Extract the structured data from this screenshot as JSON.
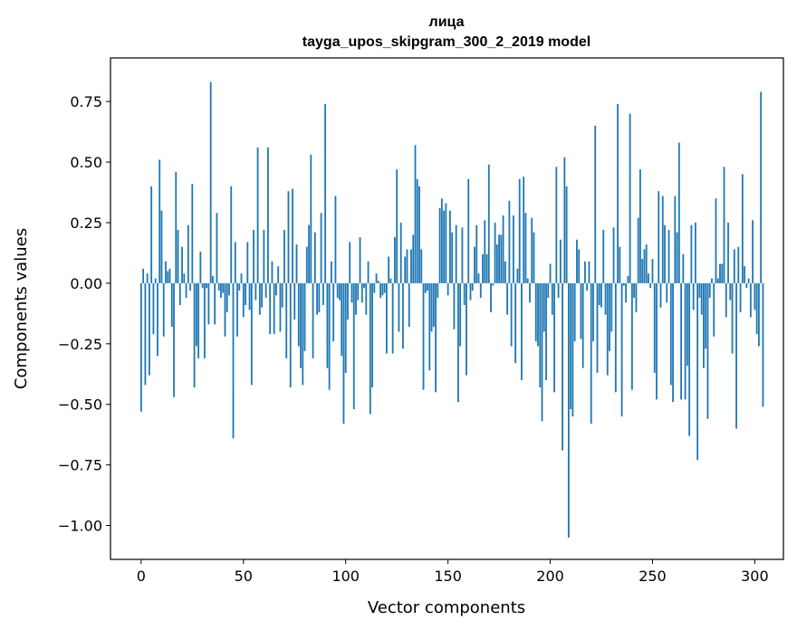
{
  "chart_data": {
    "type": "bar",
    "title": "лица",
    "subtitle": "tayga_upos_skipgram_300_2_2019 model",
    "xlabel": "Vector components",
    "ylabel": "Components values",
    "xlim": [
      -15,
      314
    ],
    "ylim": [
      -1.14,
      0.93
    ],
    "xticks": [
      0,
      50,
      100,
      150,
      200,
      250,
      300
    ],
    "xtick_labels": [
      "0",
      "50",
      "100",
      "150",
      "200",
      "250",
      "300"
    ],
    "yticks": [
      0.75,
      0.5,
      0.25,
      0.0,
      -0.25,
      -0.5,
      -0.75,
      -1.0
    ],
    "ytick_labels": [
      "0.75",
      "0.50",
      "0.25",
      "0.00",
      "−0.25",
      "−0.50",
      "−0.75",
      "−1.00"
    ],
    "bar_color": "#1f77b4",
    "grid": false,
    "values": [
      -0.53,
      0.06,
      -0.42,
      0.04,
      -0.38,
      0.4,
      -0.21,
      0.02,
      -0.3,
      0.51,
      0.3,
      -0.22,
      0.09,
      0.05,
      0.06,
      -0.18,
      -0.47,
      0.46,
      0.22,
      -0.09,
      0.15,
      0.04,
      -0.06,
      0.24,
      -0.03,
      0.41,
      -0.43,
      -0.26,
      -0.31,
      0.13,
      -0.02,
      -0.31,
      -0.02,
      -0.17,
      0.83,
      0.03,
      -0.17,
      0.29,
      -0.03,
      -0.06,
      -0.04,
      -0.22,
      -0.12,
      -0.05,
      0.4,
      -0.64,
      0.17,
      -0.22,
      -0.03,
      0.04,
      -0.14,
      -0.09,
      0.17,
      -0.11,
      -0.42,
      0.22,
      -0.07,
      0.56,
      -0.13,
      -0.1,
      0.22,
      -0.06,
      0.56,
      -0.21,
      0.09,
      -0.21,
      -0.05,
      0.07,
      -0.2,
      -0.1,
      0.22,
      -0.31,
      0.38,
      -0.43,
      0.39,
      -0.15,
      0.16,
      -0.26,
      -0.35,
      -0.42,
      -0.28,
      0.15,
      0.24,
      0.53,
      -0.31,
      0.21,
      -0.13,
      -0.12,
      0.29,
      -0.09,
      0.74,
      -0.35,
      -0.44,
      0.09,
      -0.24,
      0.36,
      -0.06,
      -0.07,
      -0.3,
      -0.58,
      -0.37,
      -0.15,
      0.17,
      -0.08,
      -0.52,
      -0.13,
      -0.07,
      0.19,
      -0.08,
      -0.02,
      -0.13,
      0.09,
      -0.54,
      -0.43,
      -0.04,
      0.04,
      0.01,
      -0.06,
      -0.05,
      -0.04,
      -0.29,
      0.11,
      0.02,
      -0.29,
      0.19,
      0.47,
      -0.2,
      0.25,
      -0.27,
      0.11,
      0.14,
      -0.18,
      0.14,
      0.2,
      0.57,
      0.43,
      0.4,
      0.14,
      -0.44,
      -0.04,
      -0.03,
      -0.36,
      -0.2,
      -0.18,
      -0.45,
      -0.06,
      0.31,
      0.35,
      0.3,
      0.33,
      -0.05,
      0.3,
      0.21,
      -0.19,
      0.24,
      -0.49,
      -0.26,
      0.23,
      -0.09,
      -0.38,
      0.43,
      -0.07,
      -0.03,
      0.15,
      0.24,
      0.04,
      -0.06,
      0.12,
      0.26,
      0.12,
      0.49,
      -0.12,
      -0.01,
      0.25,
      0.16,
      0.2,
      0.2,
      0.28,
      0.09,
      -0.13,
      0.34,
      -0.26,
      0.28,
      -0.33,
      0.06,
      0.43,
      -0.4,
      0.44,
      0.29,
      0.02,
      -0.08,
      0.27,
      0.21,
      -0.24,
      -0.26,
      -0.43,
      -0.57,
      -0.2,
      -0.4,
      -0.06,
      0.08,
      -0.13,
      -0.45,
      0.48,
      -0.06,
      0.18,
      -0.69,
      0.52,
      0.4,
      -1.05,
      -0.52,
      -0.55,
      -0.24,
      0.18,
      0.14,
      -0.23,
      -0.35,
      0.09,
      -0.03,
      0.09,
      -0.58,
      -0.24,
      0.65,
      -0.37,
      -0.09,
      -0.1,
      0.22,
      -0.13,
      -0.38,
      -0.28,
      -0.2,
      0.23,
      -0.45,
      0.74,
      0.15,
      -0.55,
      -0.01,
      -0.08,
      0.03,
      0.7,
      -0.44,
      -0.06,
      -0.12,
      0.27,
      0.47,
      0.1,
      0.14,
      0.16,
      0.04,
      -0.02,
      0.1,
      -0.37,
      -0.48,
      0.38,
      -0.1,
      0.36,
      0.24,
      -0.08,
      0.22,
      -0.42,
      -0.49,
      0.36,
      0.21,
      0.58,
      -0.48,
      0.12,
      -0.48,
      -0.34,
      -0.63,
      0.24,
      -0.11,
      0.25,
      -0.73,
      -0.06,
      -0.13,
      -0.35,
      -0.27,
      -0.56,
      -0.06,
      0.02,
      -0.22,
      0.35,
      0.02,
      0.08,
      0.08,
      0.48,
      -0.14,
      0.25,
      -0.07,
      -0.29,
      0.14,
      -0.6,
      0.15,
      -0.12,
      0.45,
      0.07,
      -0.02,
      0.02,
      -0.14,
      0.26,
      -0.11,
      -0.21,
      -0.26,
      0.79,
      -0.51
    ]
  }
}
